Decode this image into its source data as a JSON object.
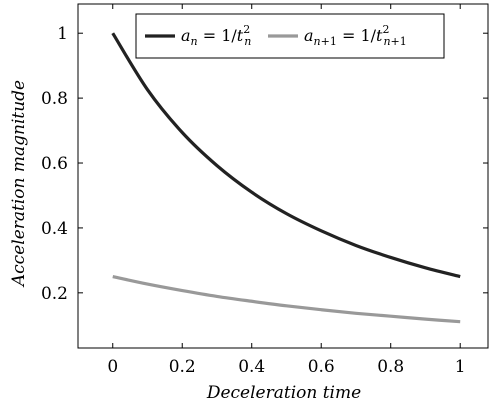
{
  "chart_data": {
    "type": "line",
    "xlabel": "Deceleration time",
    "ylabel": "Acceleration magnitude",
    "xlim": [
      -0.1,
      1.08
    ],
    "ylim": [
      0.03,
      1.09
    ],
    "xticks": [
      0,
      0.2,
      0.4,
      0.6,
      0.8,
      1
    ],
    "xtick_labels": [
      "0",
      "0.2",
      "0.4",
      "0.6",
      "0.8",
      "1"
    ],
    "yticks": [
      0.2,
      0.4,
      0.6,
      0.8,
      1
    ],
    "ytick_labels": [
      "0.2",
      "0.4",
      "0.6",
      "0.8",
      "1"
    ],
    "grid": false,
    "legend_position": "top",
    "series": [
      {
        "name": "a_n = 1/t_n^2",
        "color": "#222222",
        "x": [
          0,
          0.1,
          0.2,
          0.3,
          0.4,
          0.5,
          0.6,
          0.7,
          0.8,
          0.9,
          1
        ],
        "y": [
          1,
          0.826,
          0.694,
          0.592,
          0.51,
          0.444,
          0.391,
          0.346,
          0.309,
          0.277,
          0.25
        ]
      },
      {
        "name": "a_{n+1} = 1/t_{n+1}^2",
        "color": "#999999",
        "x": [
          0,
          0.1,
          0.2,
          0.3,
          0.4,
          0.5,
          0.6,
          0.7,
          0.8,
          0.9,
          1
        ],
        "y": [
          0.25,
          0.227,
          0.207,
          0.189,
          0.174,
          0.16,
          0.148,
          0.137,
          0.128,
          0.119,
          0.111
        ]
      }
    ]
  }
}
